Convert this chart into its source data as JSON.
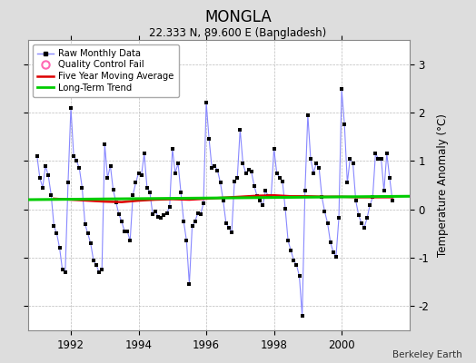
{
  "title": "MONGLA",
  "subtitle": "22.333 N, 89.600 E (Bangladesh)",
  "ylabel": "Temperature Anomaly (°C)",
  "credit": "Berkeley Earth",
  "background_color": "#dddddd",
  "plot_bg_color": "#ffffff",
  "grid_color": "#bbbbbb",
  "grid_linestyle": "--",
  "xlim": [
    1990.75,
    2002.0
  ],
  "ylim": [
    -2.5,
    3.5
  ],
  "yticks": [
    -2,
    -1,
    0,
    1,
    2,
    3
  ],
  "xticks": [
    1992,
    1994,
    1996,
    1998,
    2000
  ],
  "raw_line_color": "#8888ff",
  "marker_color": "#000000",
  "moving_avg_color": "#dd0000",
  "trend_color": "#00cc00",
  "qc_color": "#ff69b4",
  "raw_data_x": [
    1991.0,
    1991.083,
    1991.167,
    1991.25,
    1991.333,
    1991.417,
    1991.5,
    1991.583,
    1991.667,
    1991.75,
    1991.833,
    1991.917,
    1992.0,
    1992.083,
    1992.167,
    1992.25,
    1992.333,
    1992.417,
    1992.5,
    1992.583,
    1992.667,
    1992.75,
    1992.833,
    1992.917,
    1993.0,
    1993.083,
    1993.167,
    1993.25,
    1993.333,
    1993.417,
    1993.5,
    1993.583,
    1993.667,
    1993.75,
    1993.833,
    1993.917,
    1994.0,
    1994.083,
    1994.167,
    1994.25,
    1994.333,
    1994.417,
    1994.5,
    1994.583,
    1994.667,
    1994.75,
    1994.833,
    1994.917,
    1995.0,
    1995.083,
    1995.167,
    1995.25,
    1995.333,
    1995.417,
    1995.5,
    1995.583,
    1995.667,
    1995.75,
    1995.833,
    1995.917,
    1996.0,
    1996.083,
    1996.167,
    1996.25,
    1996.333,
    1996.417,
    1996.5,
    1996.583,
    1996.667,
    1996.75,
    1996.833,
    1996.917,
    1997.0,
    1997.083,
    1997.167,
    1997.25,
    1997.333,
    1997.417,
    1997.5,
    1997.583,
    1997.667,
    1997.75,
    1997.833,
    1997.917,
    1998.0,
    1998.083,
    1998.167,
    1998.25,
    1998.333,
    1998.417,
    1998.5,
    1998.583,
    1998.667,
    1998.75,
    1998.833,
    1998.917,
    1999.0,
    1999.083,
    1999.167,
    1999.25,
    1999.333,
    1999.417,
    1999.5,
    1999.583,
    1999.667,
    1999.75,
    1999.833,
    1999.917,
    2000.0,
    2000.083,
    2000.167,
    2000.25,
    2000.333,
    2000.417,
    2000.5,
    2000.583,
    2000.667,
    2000.75,
    2000.833,
    2000.917,
    2001.0,
    2001.083,
    2001.167,
    2001.25,
    2001.333,
    2001.417,
    2001.5
  ],
  "raw_data_y": [
    1.1,
    0.65,
    0.45,
    0.9,
    0.7,
    0.3,
    -0.35,
    -0.5,
    -0.8,
    -1.25,
    -1.3,
    0.55,
    2.1,
    1.1,
    1.0,
    0.85,
    0.45,
    -0.3,
    -0.5,
    -0.7,
    -1.05,
    -1.15,
    -1.3,
    -1.25,
    1.35,
    0.65,
    0.9,
    0.4,
    0.15,
    -0.1,
    -0.25,
    -0.45,
    -0.45,
    -0.65,
    0.3,
    0.55,
    0.75,
    0.7,
    1.15,
    0.45,
    0.35,
    -0.1,
    -0.05,
    -0.15,
    -0.18,
    -0.12,
    -0.08,
    0.05,
    1.25,
    0.75,
    0.95,
    0.35,
    -0.25,
    -0.65,
    -1.55,
    -0.35,
    -0.25,
    -0.08,
    -0.1,
    0.12,
    2.2,
    1.45,
    0.85,
    0.9,
    0.8,
    0.55,
    0.18,
    -0.28,
    -0.38,
    -0.48,
    0.58,
    0.65,
    1.65,
    0.95,
    0.75,
    0.82,
    0.78,
    0.48,
    0.28,
    0.18,
    0.08,
    0.38,
    0.28,
    0.28,
    1.25,
    0.75,
    0.65,
    0.58,
    0.02,
    -0.65,
    -0.85,
    -1.05,
    -1.15,
    -1.38,
    -2.2,
    0.38,
    1.95,
    1.05,
    0.75,
    0.95,
    0.85,
    0.25,
    -0.05,
    -0.28,
    -0.68,
    -0.88,
    -0.98,
    -0.18,
    2.48,
    1.75,
    0.55,
    1.05,
    0.95,
    0.18,
    -0.12,
    -0.28,
    -0.38,
    -0.18,
    0.08,
    0.25,
    1.15,
    1.05,
    1.05,
    0.38,
    1.15,
    0.65,
    0.18
  ],
  "moving_avg_x": [
    1991.5,
    1992.0,
    1992.5,
    1993.0,
    1993.5,
    1994.0,
    1994.5,
    1995.0,
    1995.5,
    1996.0,
    1996.5,
    1997.0,
    1997.5,
    1998.0,
    1998.5,
    1999.0,
    1999.5,
    2000.0,
    2000.5,
    2001.0,
    2001.5
  ],
  "moving_avg_y": [
    0.22,
    0.2,
    0.18,
    0.16,
    0.15,
    0.18,
    0.2,
    0.21,
    0.2,
    0.22,
    0.24,
    0.26,
    0.28,
    0.29,
    0.27,
    0.27,
    0.26,
    0.26,
    0.25,
    0.25,
    0.25
  ],
  "trend_x": [
    1990.75,
    2002.0
  ],
  "trend_y": [
    0.2,
    0.27
  ]
}
